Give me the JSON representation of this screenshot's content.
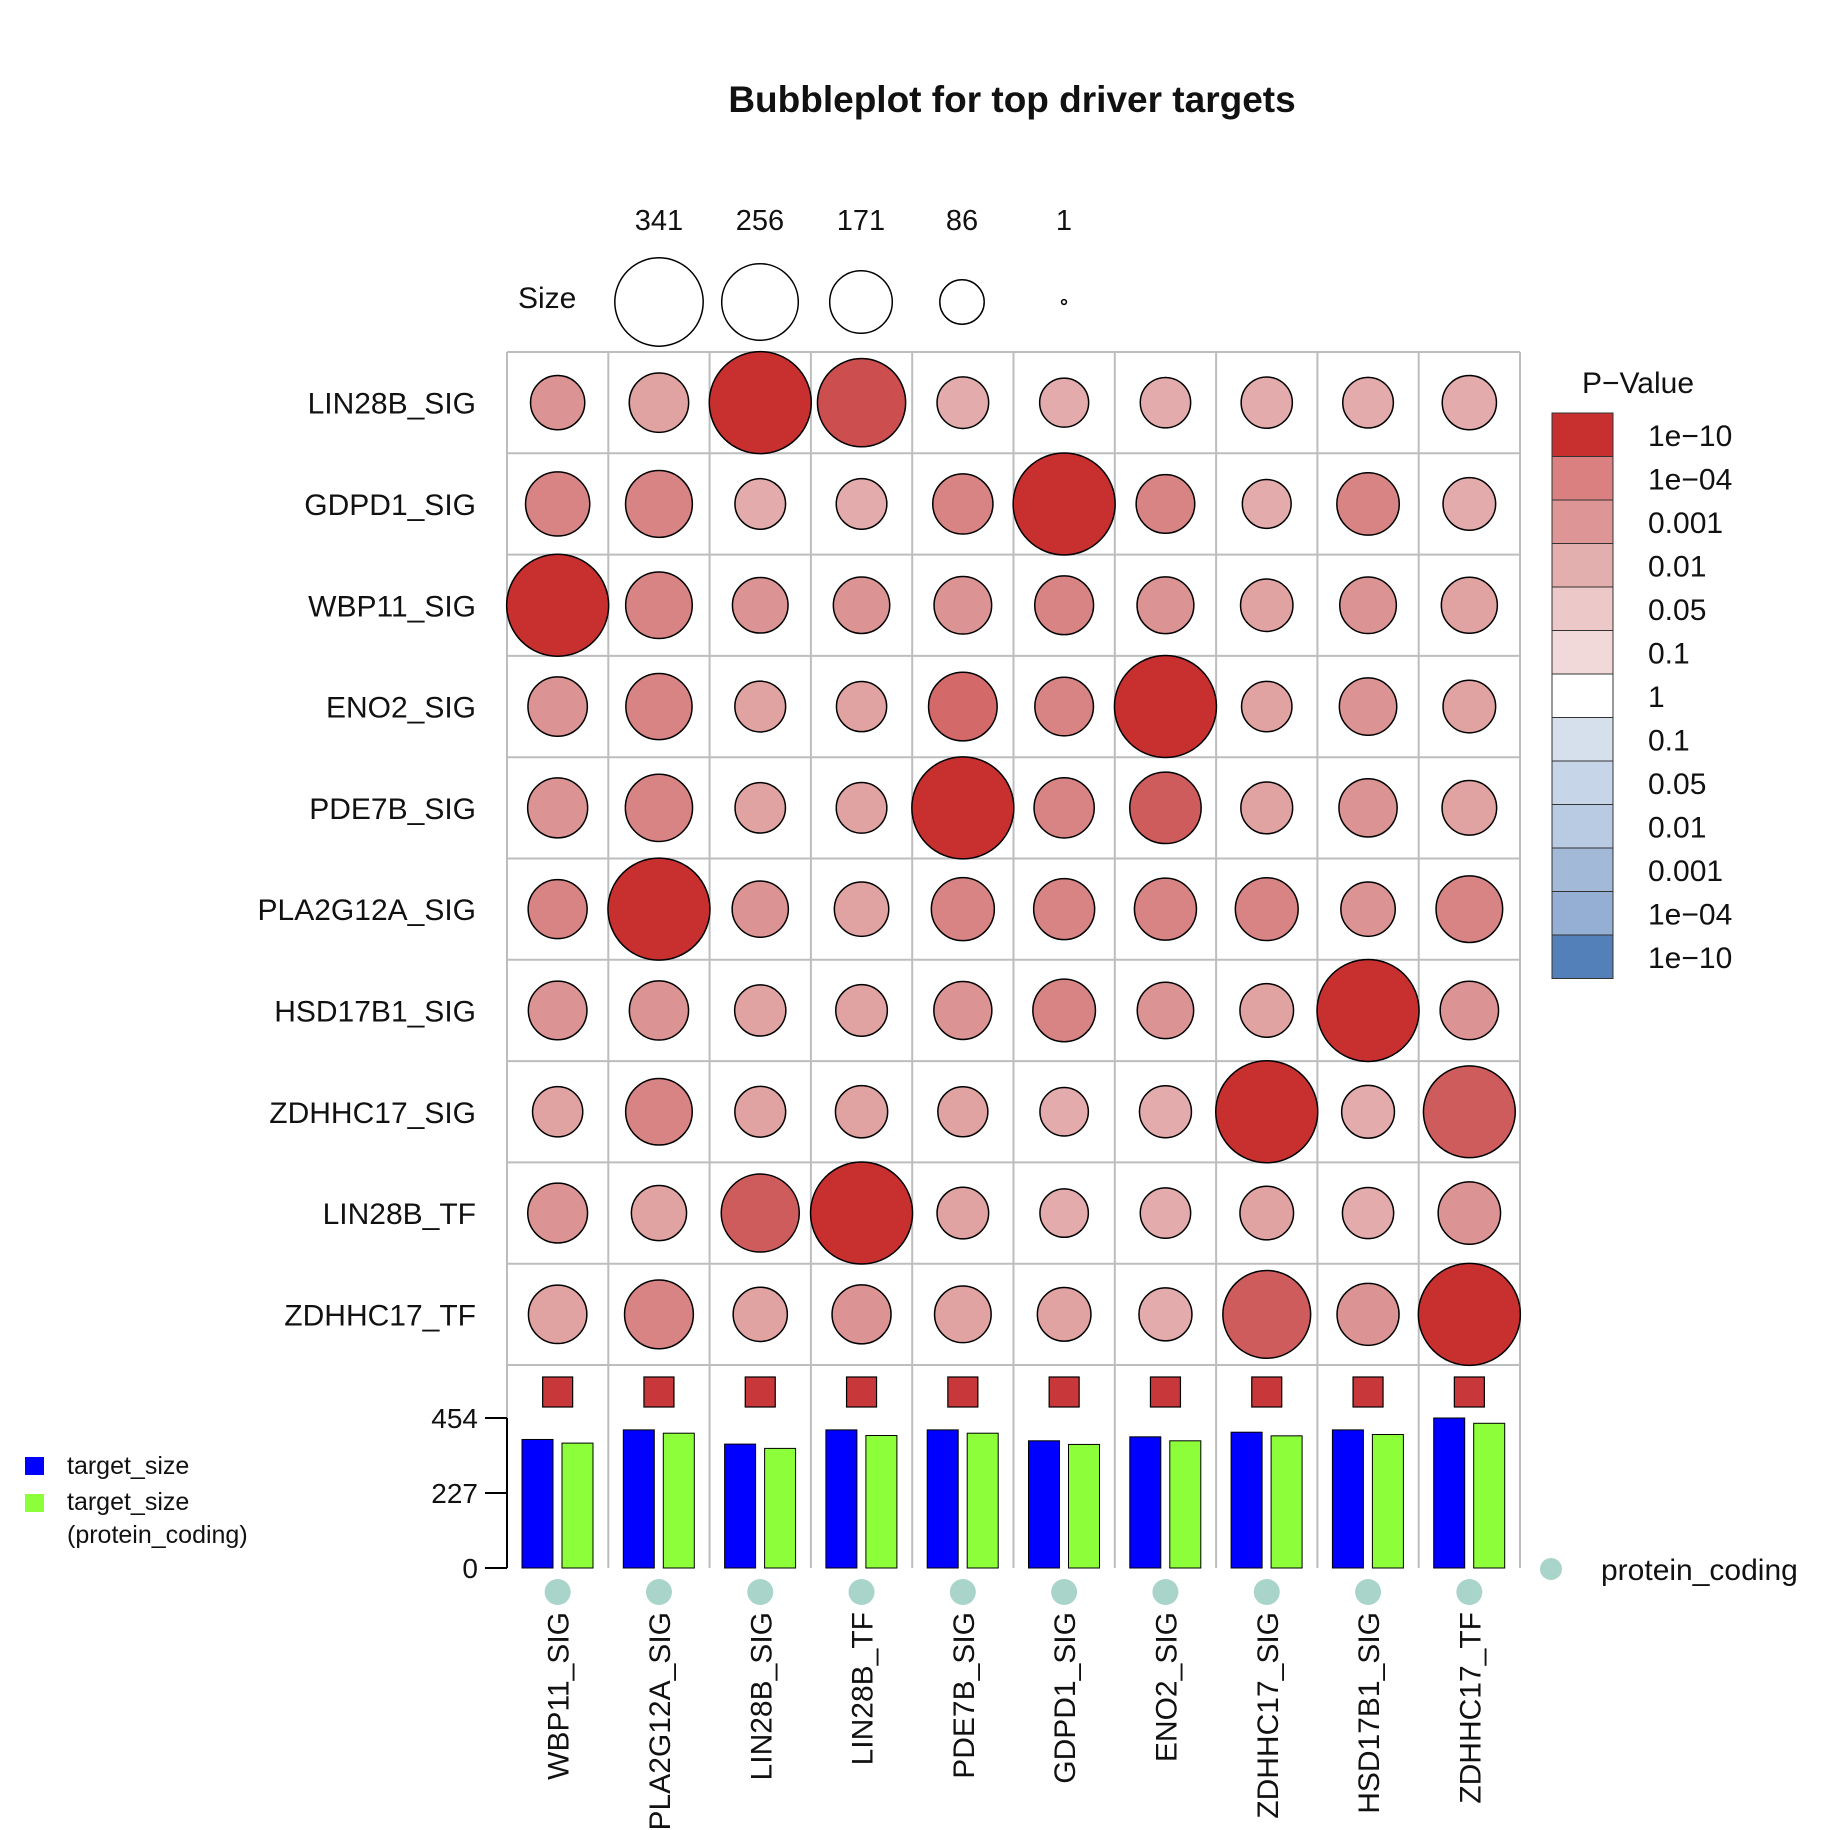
{
  "chart_data": {
    "type": "bubble",
    "title": "Bubbleplot for top driver targets",
    "rows": [
      "LIN28B_SIG",
      "GDPD1_SIG",
      "WBP11_SIG",
      "ENO2_SIG",
      "PDE7B_SIG",
      "PLA2G12A_SIG",
      "HSD17B1_SIG",
      "ZDHHC17_SIG",
      "LIN28B_TF",
      "ZDHHC17_TF"
    ],
    "columns": [
      "WBP11_SIG",
      "PLA2G12A_SIG",
      "LIN28B_SIG",
      "LIN28B_TF",
      "PDE7B_SIG",
      "GDPD1_SIG",
      "ENO2_SIG",
      "ZDHHC17_SIG",
      "HSD17B1_SIG",
      "ZDHHC17_TF"
    ],
    "size_legend": {
      "label": "Size",
      "values": [
        341,
        256,
        171,
        86,
        1
      ]
    },
    "overlap_size": [
      [
        128,
        154,
        454,
        340,
        116,
        105,
        111,
        114,
        112,
        128
      ],
      [
        180,
        195,
        112,
        112,
        158,
        454,
        150,
        104,
        170,
        121
      ],
      [
        454,
        193,
        135,
        139,
        145,
        151,
        141,
        120,
        140,
        137
      ],
      [
        154,
        191,
        113,
        110,
        205,
        150,
        454,
        111,
        144,
        121
      ],
      [
        157,
        197,
        111,
        112,
        454,
        158,
        223,
        117,
        148,
        130
      ],
      [
        152,
        454,
        138,
        129,
        173,
        162,
        168,
        172,
        129,
        193
      ],
      [
        150,
        153,
        114,
        116,
        147,
        171,
        139,
        125,
        454,
        149
      ],
      [
        110,
        193,
        113,
        119,
        109,
        102,
        118,
        454,
        122,
        368
      ],
      [
        156,
        133,
        266,
        454,
        116,
        102,
        111,
        125,
        114,
        170
      ],
      [
        149,
        206,
        128,
        152,
        140,
        125,
        123,
        337,
        168,
        454
      ]
    ],
    "neglog10_pvalue": [
      [
        3.2,
        2.3,
        11,
        8,
        1.8,
        1.6,
        1.6,
        1.6,
        1.6,
        1.6
      ],
      [
        4,
        4,
        1.8,
        1.8,
        4,
        11,
        4,
        1.8,
        4,
        1.8
      ],
      [
        11,
        4,
        3,
        3,
        3,
        4,
        3,
        2.3,
        3,
        2.3
      ],
      [
        3,
        4,
        2.3,
        2.3,
        6,
        4,
        11,
        2.3,
        3,
        2.3
      ],
      [
        3,
        4,
        2.3,
        2.3,
        11,
        4,
        7,
        2.3,
        3,
        2.3
      ],
      [
        4,
        12,
        3,
        2.3,
        4,
        4,
        4,
        4,
        3,
        4
      ],
      [
        3,
        3,
        2.3,
        2.3,
        3,
        4,
        3,
        2.3,
        11,
        3
      ],
      [
        2.3,
        4,
        2.3,
        2.3,
        2.3,
        1.8,
        1.8,
        12,
        1.8,
        7
      ],
      [
        3,
        2.3,
        7,
        12,
        2.3,
        1.8,
        1.8,
        2.3,
        1.8,
        3
      ],
      [
        2.3,
        4,
        2.3,
        3,
        2.3,
        2.3,
        1.8,
        7,
        3,
        12
      ]
    ],
    "pvalue_legend": {
      "title": "P−Value",
      "labels": [
        "1e−10",
        "1e−04",
        "0.001",
        "0.01",
        "0.05",
        "0.1",
        "1",
        "0.1",
        "0.05",
        "0.01",
        "0.001",
        "1e−04",
        "1e−10"
      ],
      "colors": [
        "#C8302F",
        "#DB8080",
        "#DD9595",
        "#E3AEAE",
        "#ECC8C8",
        "#F2D9D9",
        "#FFFFFF",
        "#D5E0EC",
        "#C6D5E8",
        "#B8CBE3",
        "#A2B9D8",
        "#94AFD3",
        "#5480BA"
      ]
    },
    "target_size": [
      389,
      418,
      375,
      418,
      418,
      385,
      397,
      411,
      418,
      454
    ],
    "target_size_protein_coding": [
      378,
      408,
      362,
      401,
      408,
      374,
      385,
      400,
      404,
      438
    ],
    "bar_axis_ticks": [
      0,
      227,
      454
    ],
    "bar_legend": [
      {
        "label": "target_size",
        "color": "#0000FF"
      },
      {
        "label": "target_size",
        "label2": "(protein_coding)",
        "color": "#8CFF3A"
      }
    ],
    "marker_color": "#C8373A",
    "protein_coding_label": "protein_coding",
    "protein_coding_color": "#A8D4CA"
  }
}
